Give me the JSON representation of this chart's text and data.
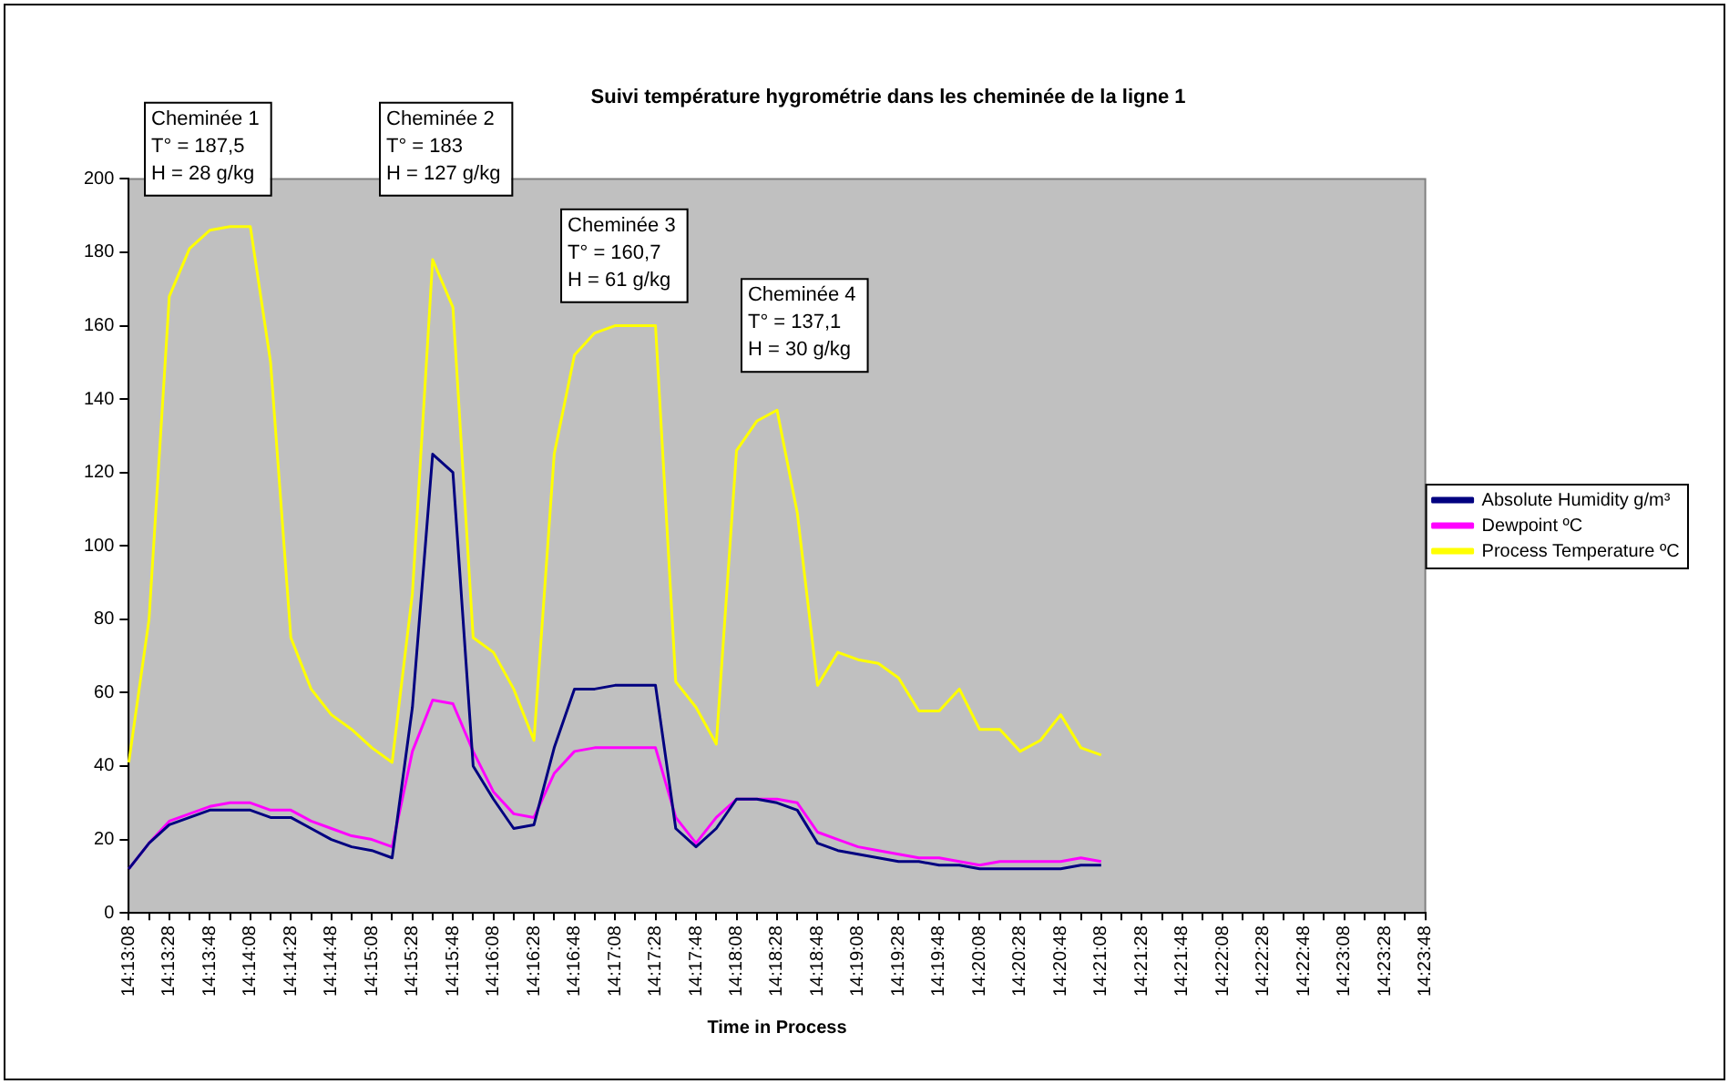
{
  "chart_data": {
    "type": "line",
    "title": "Suivi température hygrométrie dans les cheminée de la ligne 1",
    "xlabel": "Time in Process",
    "categories": [
      "14:13:08",
      null,
      "14:13:28",
      null,
      "14:13:48",
      null,
      "14:14:08",
      null,
      "14:14:28",
      null,
      "14:14:48",
      null,
      "14:15:08",
      null,
      "14:15:28",
      null,
      "14:15:48",
      null,
      "14:16:08",
      null,
      "14:16:28",
      null,
      "14:16:48",
      null,
      "14:17:08",
      null,
      "14:17:28",
      null,
      "14:17:48",
      null,
      "14:18:08",
      null,
      "14:18:28",
      null,
      "14:18:48",
      null,
      "14:19:08",
      null,
      "14:19:28",
      null,
      "14:19:48",
      null,
      "14:20:08",
      null,
      "14:20:28",
      null,
      "14:20:48",
      null,
      "14:21:08",
      null,
      "14:21:28",
      null,
      "14:21:48",
      null,
      "14:22:08",
      null,
      "14:22:28",
      null,
      "14:22:48",
      null,
      "14:23:08",
      null,
      "14:23:28",
      null,
      "14:23:48"
    ],
    "series": [
      {
        "name": "Absolute Humidity g/m³",
        "color": "#000080",
        "values": [
          12,
          19,
          24,
          26,
          28,
          28,
          28,
          26,
          26,
          23,
          20,
          18,
          17,
          15,
          56,
          125,
          120,
          40,
          31,
          23,
          24,
          45,
          61,
          61,
          62,
          62,
          62,
          23,
          18,
          23,
          31,
          31,
          30,
          28,
          19,
          17,
          16,
          15,
          14,
          14,
          13,
          13,
          12,
          12,
          12,
          12,
          12,
          13,
          13,
          null,
          null,
          null,
          null,
          null,
          null,
          null,
          null,
          null,
          null,
          null,
          null,
          null,
          null,
          null,
          null
        ]
      },
      {
        "name": "Dewpoint ºC",
        "color": "#ff00ff",
        "values": [
          12,
          19,
          25,
          27,
          29,
          30,
          30,
          28,
          28,
          25,
          23,
          21,
          20,
          18,
          44,
          58,
          57,
          44,
          33,
          27,
          26,
          38,
          44,
          45,
          45,
          45,
          45,
          26,
          19,
          26,
          31,
          31,
          31,
          30,
          22,
          20,
          18,
          17,
          16,
          15,
          15,
          14,
          13,
          14,
          14,
          14,
          14,
          15,
          14,
          null,
          null,
          null,
          null,
          null,
          null,
          null,
          null,
          null,
          null,
          null,
          null,
          null,
          null,
          null,
          null
        ]
      },
      {
        "name": "Process Temperature ºC",
        "color": "#ffff00",
        "values": [
          41,
          80,
          168,
          181,
          186,
          187,
          187,
          150,
          75,
          61,
          54,
          50,
          45,
          41,
          87,
          178,
          165,
          75,
          71,
          61,
          47,
          125,
          152,
          158,
          160,
          160,
          160,
          63,
          56,
          46,
          126,
          134,
          137,
          109,
          62,
          71,
          69,
          68,
          64,
          55,
          55,
          61,
          50,
          50,
          44,
          47,
          54,
          45,
          43,
          null,
          null,
          null,
          null,
          null,
          null,
          null,
          null,
          null,
          null,
          null,
          null,
          null,
          null,
          null,
          null
        ]
      }
    ],
    "ylim": [
      0,
      200
    ],
    "yticks": [
      0,
      20,
      40,
      60,
      80,
      100,
      120,
      140,
      160,
      180,
      200
    ],
    "grid": false,
    "legend": "right",
    "marker": "none",
    "line_style": "solid",
    "annotations": [
      "Cheminée 1\nT° = 187,5\nH = 28 g/kg",
      "Cheminée 2\nT° = 183\nH = 127 g/kg",
      "Cheminée 3\nT° = 160,7\nH = 61 g/kg",
      "Cheminée 4\nT° = 137,1\nH = 30 g/kg"
    ]
  }
}
